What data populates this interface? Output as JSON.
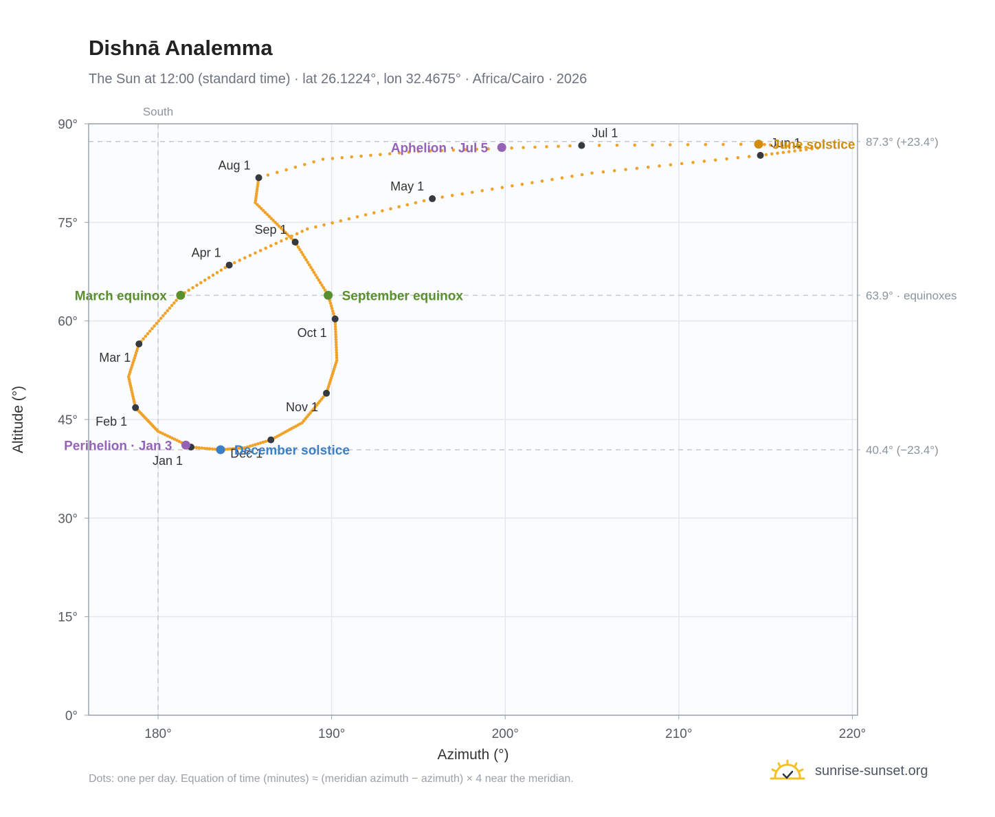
{
  "header": {
    "title": "Dishnā Analemma",
    "subtitle": "The Sun at 12:00 (standard time) · lat 26.1224°, lon 32.4675° · Africa/Cairo · 2026"
  },
  "footer": {
    "note": "Dots: one per day. Equation of time (minutes) ≈ (meridian azimuth − azimuth) × 4 near the meridian.",
    "brand": "sunrise-sunset.org"
  },
  "colors": {
    "path": "#f0a22a",
    "month_dot": "#343a40",
    "equinox": "#5a8f2e",
    "june_solstice": "#d18e0e",
    "december_solstice": "#3b7fc4",
    "apsis": "#9563b5",
    "plot_bg": "#fafcfe",
    "grid": "#e3e8ee",
    "reference": "#c3c9d1",
    "axis_text": "#555b63"
  },
  "chart_data": {
    "type": "scatter",
    "title": "Dishnā Analemma",
    "xlabel": "Azimuth (°)",
    "ylabel": "Altitude (°)",
    "xlim": [
      176,
      220.3
    ],
    "ylim": [
      0,
      90
    ],
    "x_ticks": [
      180,
      190,
      200,
      210,
      220
    ],
    "y_ticks": [
      0,
      15,
      30,
      45,
      60,
      75,
      90
    ],
    "x_tick_suffix": "°",
    "y_tick_suffix": "°",
    "grid": true,
    "meridian": {
      "azimuth": 180,
      "label": "South"
    },
    "reference_lines": [
      {
        "altitude": 87.3,
        "label": "87.3° (+23.4°)"
      },
      {
        "altitude": 63.9,
        "label": "63.9° · equinoxes"
      },
      {
        "altitude": 40.4,
        "label": "40.4° (−23.4°)"
      }
    ],
    "series": [
      {
        "kind": "daily_path",
        "note": "anchor points (azimuth, altitude) of the daily sun position; one dot per day is drawn along them",
        "points": [
          {
            "doy": 1,
            "x": 181.9,
            "y": 40.8
          },
          {
            "doy": 15,
            "x": 180.0,
            "y": 43.2
          },
          {
            "doy": 32,
            "x": 178.7,
            "y": 46.8
          },
          {
            "doy": 46,
            "x": 178.3,
            "y": 51.5
          },
          {
            "doy": 60,
            "x": 178.9,
            "y": 56.5
          },
          {
            "doy": 79,
            "x": 181.3,
            "y": 63.9
          },
          {
            "doy": 91,
            "x": 184.1,
            "y": 68.5
          },
          {
            "doy": 106,
            "x": 188.6,
            "y": 74.0
          },
          {
            "doy": 121,
            "x": 195.8,
            "y": 78.6
          },
          {
            "doy": 137,
            "x": 205.0,
            "y": 82.5
          },
          {
            "doy": 152,
            "x": 214.7,
            "y": 85.2
          },
          {
            "doy": 162,
            "x": 218.0,
            "y": 86.3
          },
          {
            "doy": 172,
            "x": 214.6,
            "y": 86.9
          },
          {
            "doy": 182,
            "x": 204.4,
            "y": 86.7
          },
          {
            "doy": 196,
            "x": 195.0,
            "y": 85.8
          },
          {
            "doy": 206,
            "x": 189.5,
            "y": 84.6
          },
          {
            "doy": 213,
            "x": 185.8,
            "y": 81.8
          },
          {
            "doy": 224,
            "x": 185.6,
            "y": 78.0
          },
          {
            "doy": 244,
            "x": 187.9,
            "y": 72.0
          },
          {
            "doy": 265,
            "x": 189.8,
            "y": 63.9
          },
          {
            "doy": 274,
            "x": 190.2,
            "y": 60.3
          },
          {
            "doy": 290,
            "x": 190.3,
            "y": 54.0
          },
          {
            "doy": 305,
            "x": 189.7,
            "y": 49.0
          },
          {
            "doy": 320,
            "x": 188.3,
            "y": 44.5
          },
          {
            "doy": 335,
            "x": 186.5,
            "y": 41.9
          },
          {
            "doy": 345,
            "x": 185.0,
            "y": 40.7
          },
          {
            "doy": 355,
            "x": 183.6,
            "y": 40.4
          },
          {
            "doy": 366,
            "x": 181.9,
            "y": 40.8
          }
        ]
      },
      {
        "kind": "month_markers",
        "points": [
          {
            "label": "Jan 1",
            "x": 181.9,
            "y": 40.8,
            "anchor": "below-left"
          },
          {
            "label": "Feb 1",
            "x": 178.7,
            "y": 46.8,
            "anchor": "below-left"
          },
          {
            "label": "Mar 1",
            "x": 178.9,
            "y": 56.5,
            "anchor": "below-left"
          },
          {
            "label": "Apr 1",
            "x": 184.1,
            "y": 68.5,
            "anchor": "above-left"
          },
          {
            "label": "May 1",
            "x": 195.8,
            "y": 78.6,
            "anchor": "above-left"
          },
          {
            "label": "Jun 1",
            "x": 214.7,
            "y": 85.2,
            "anchor": "above-right"
          },
          {
            "label": "Jul 1",
            "x": 204.4,
            "y": 86.7,
            "anchor": "above-right"
          },
          {
            "label": "Aug 1",
            "x": 185.8,
            "y": 81.8,
            "anchor": "above-left"
          },
          {
            "label": "Sep 1",
            "x": 187.9,
            "y": 72.0,
            "anchor": "above-left"
          },
          {
            "label": "Oct 1",
            "x": 190.2,
            "y": 60.3,
            "anchor": "below-left"
          },
          {
            "label": "Nov 1",
            "x": 189.7,
            "y": 49.0,
            "anchor": "below-left"
          },
          {
            "label": "Dec 1",
            "x": 186.5,
            "y": 41.9,
            "anchor": "below-left"
          }
        ]
      },
      {
        "kind": "events",
        "points": [
          {
            "label": "March equinox",
            "x": 181.3,
            "y": 63.9,
            "color_key": "equinox",
            "side": "left"
          },
          {
            "label": "September equinox",
            "x": 189.8,
            "y": 63.9,
            "color_key": "equinox",
            "side": "right"
          },
          {
            "label": "June solstice",
            "x": 214.6,
            "y": 86.9,
            "color_key": "june_solstice",
            "side": "right"
          },
          {
            "label": "December solstice",
            "x": 183.6,
            "y": 40.4,
            "color_key": "december_solstice",
            "side": "right"
          },
          {
            "label": "Perihelion · Jan 3",
            "x": 181.6,
            "y": 41.1,
            "color_key": "apsis",
            "side": "left"
          },
          {
            "label": "Aphelion · Jul 5",
            "x": 199.8,
            "y": 86.4,
            "color_key": "apsis",
            "side": "left"
          }
        ]
      }
    ]
  }
}
